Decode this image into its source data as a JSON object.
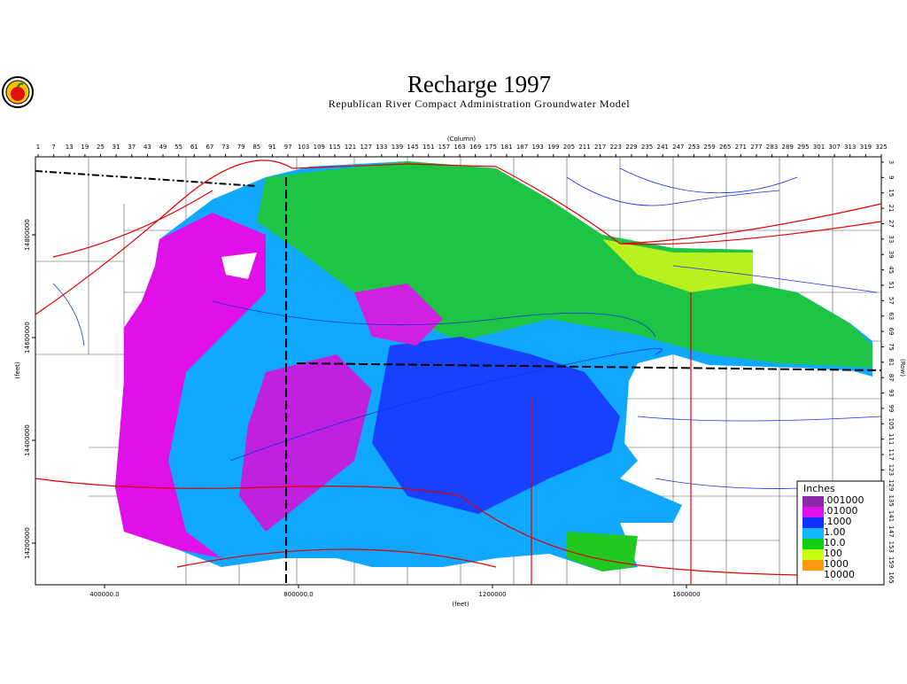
{
  "header": {
    "title": "Recharge 1997",
    "subtitle": "Republican River Compact Administration Groundwater Model"
  },
  "axes": {
    "top": {
      "label": "(Column)",
      "ticks": [
        1,
        7,
        13,
        19,
        25,
        31,
        37,
        43,
        49,
        55,
        61,
        67,
        73,
        79,
        85,
        91,
        97,
        103,
        109,
        115,
        121,
        127,
        133,
        139,
        145,
        151,
        157,
        163,
        169,
        175,
        181,
        187,
        193,
        199,
        205,
        211,
        217,
        223,
        229,
        235,
        241,
        247,
        253,
        259,
        265,
        271,
        277,
        283,
        289,
        295,
        301,
        307,
        313,
        319,
        325
      ]
    },
    "right": {
      "label": "(Row)",
      "ticks": [
        3,
        9,
        15,
        21,
        27,
        33,
        39,
        45,
        51,
        57,
        63,
        69,
        75,
        81,
        87,
        93,
        99,
        105,
        111,
        117,
        123,
        129,
        135,
        141,
        147,
        153,
        159,
        165
      ]
    },
    "bottom": {
      "label": "(feet)",
      "ticks": [
        "400000.0",
        "800000.0",
        "1200000",
        "1600000"
      ]
    },
    "left": {
      "label": "(feet)",
      "ticks": [
        "14800000",
        "14600000",
        "14400000",
        "14200000"
      ]
    }
  },
  "legend": {
    "title": "Inches",
    "items": [
      {
        "label": ".001000",
        "color": "#8a2aa8"
      },
      {
        "label": ".01000",
        "color": "#e010e8"
      },
      {
        "label": ".1000",
        "color": "#1030ff"
      },
      {
        "label": "1.00",
        "color": "#10b8ff"
      },
      {
        "label": "10.0",
        "color": "#10d010"
      },
      {
        "label": "100",
        "color": "#c8ff10"
      },
      {
        "label": "1000",
        "color": "#ff9a10"
      },
      {
        "label": "10000",
        "color": "#ffffff"
      }
    ]
  }
}
